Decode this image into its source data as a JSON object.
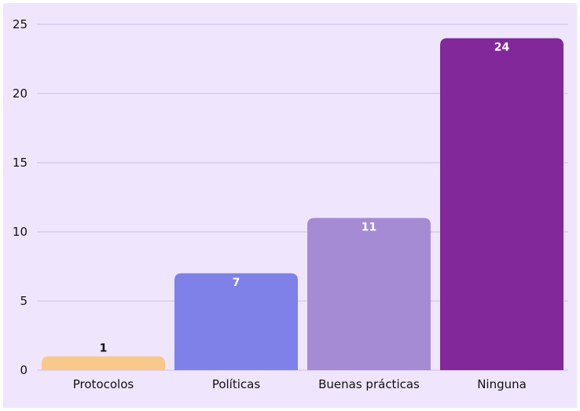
{
  "chart_data": {
    "type": "bar",
    "categories": [
      "Protocolos",
      "Políticas",
      "Buenas prácticas",
      "Ninguna"
    ],
    "values": [
      1,
      7,
      11,
      24
    ],
    "colors": [
      "#f9c98b",
      "#7f80e8",
      "#a58bd3",
      "#82289a"
    ],
    "label_colors": [
      "#111111",
      "#ffffff",
      "#ffffff",
      "#ffffff"
    ],
    "y_ticks": [
      "0",
      "5",
      "10",
      "15",
      "20",
      "25"
    ],
    "ylim": [
      0,
      25
    ],
    "grid": true,
    "background": "#efe5fd",
    "title": "",
    "xlabel": "",
    "ylabel": ""
  }
}
